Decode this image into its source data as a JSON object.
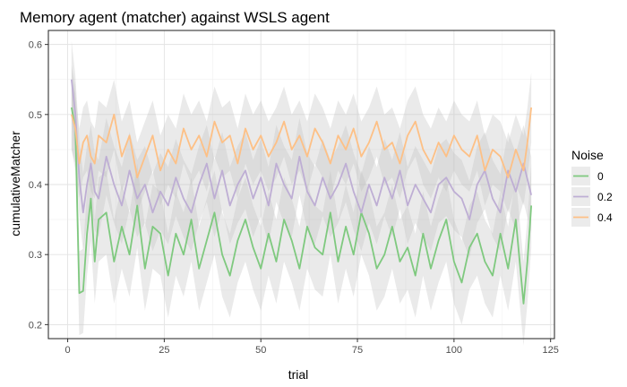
{
  "chart_data": {
    "type": "line",
    "title": "Memory agent (matcher) against WSLS agent",
    "xlabel": "trial",
    "ylabel": "cumulativeMatcher",
    "xlim": [
      -5,
      126
    ],
    "ylim": [
      0.18,
      0.62
    ],
    "x_ticks": [
      0,
      25,
      50,
      75,
      100,
      125
    ],
    "y_ticks": [
      0.2,
      0.3,
      0.4,
      0.5,
      0.6
    ],
    "x_tick_labels": [
      "0",
      "25",
      "50",
      "75",
      "100",
      "125"
    ],
    "y_tick_labels": [
      "0.2",
      "0.3",
      "0.4",
      "0.5",
      "0.6"
    ],
    "grid": true,
    "legend": {
      "title": "Noise",
      "position": "right"
    },
    "series": [
      {
        "name": "0",
        "color": "#7fc97f",
        "band_width": 0.06,
        "points": [
          [
            1,
            0.51
          ],
          [
            2,
            0.48
          ],
          [
            3,
            0.245
          ],
          [
            4,
            0.248
          ],
          [
            5,
            0.33
          ],
          [
            6,
            0.38
          ],
          [
            7,
            0.29
          ],
          [
            8,
            0.35
          ],
          [
            10,
            0.36
          ],
          [
            12,
            0.29
          ],
          [
            14,
            0.34
          ],
          [
            16,
            0.3
          ],
          [
            18,
            0.37
          ],
          [
            20,
            0.28
          ],
          [
            22,
            0.34
          ],
          [
            24,
            0.33
          ],
          [
            26,
            0.27
          ],
          [
            28,
            0.33
          ],
          [
            30,
            0.3
          ],
          [
            32,
            0.35
          ],
          [
            34,
            0.28
          ],
          [
            36,
            0.32
          ],
          [
            38,
            0.36
          ],
          [
            40,
            0.3
          ],
          [
            42,
            0.27
          ],
          [
            44,
            0.32
          ],
          [
            46,
            0.35
          ],
          [
            48,
            0.31
          ],
          [
            50,
            0.28
          ],
          [
            52,
            0.33
          ],
          [
            54,
            0.29
          ],
          [
            56,
            0.35
          ],
          [
            58,
            0.32
          ],
          [
            60,
            0.28
          ],
          [
            62,
            0.34
          ],
          [
            64,
            0.31
          ],
          [
            66,
            0.3
          ],
          [
            68,
            0.36
          ],
          [
            70,
            0.29
          ],
          [
            72,
            0.34
          ],
          [
            74,
            0.3
          ],
          [
            76,
            0.36
          ],
          [
            78,
            0.33
          ],
          [
            80,
            0.28
          ],
          [
            82,
            0.3
          ],
          [
            84,
            0.34
          ],
          [
            86,
            0.29
          ],
          [
            88,
            0.31
          ],
          [
            90,
            0.27
          ],
          [
            92,
            0.33
          ],
          [
            94,
            0.28
          ],
          [
            96,
            0.32
          ],
          [
            98,
            0.35
          ],
          [
            100,
            0.29
          ],
          [
            102,
            0.26
          ],
          [
            104,
            0.31
          ],
          [
            106,
            0.33
          ],
          [
            108,
            0.29
          ],
          [
            110,
            0.27
          ],
          [
            112,
            0.33
          ],
          [
            114,
            0.28
          ],
          [
            116,
            0.35
          ],
          [
            118,
            0.23
          ],
          [
            119,
            0.29
          ],
          [
            120,
            0.37
          ]
        ]
      },
      {
        "name": "0.2",
        "color": "#beaed4",
        "band_width": 0.055,
        "points": [
          [
            1,
            0.55
          ],
          [
            2,
            0.5
          ],
          [
            3,
            0.41
          ],
          [
            4,
            0.36
          ],
          [
            5,
            0.4
          ],
          [
            6,
            0.43
          ],
          [
            7,
            0.39
          ],
          [
            8,
            0.38
          ],
          [
            10,
            0.44
          ],
          [
            12,
            0.4
          ],
          [
            14,
            0.37
          ],
          [
            16,
            0.42
          ],
          [
            18,
            0.38
          ],
          [
            20,
            0.4
          ],
          [
            22,
            0.36
          ],
          [
            24,
            0.39
          ],
          [
            26,
            0.37
          ],
          [
            28,
            0.41
          ],
          [
            30,
            0.38
          ],
          [
            32,
            0.36
          ],
          [
            34,
            0.4
          ],
          [
            36,
            0.43
          ],
          [
            38,
            0.38
          ],
          [
            40,
            0.42
          ],
          [
            42,
            0.37
          ],
          [
            44,
            0.4
          ],
          [
            46,
            0.42
          ],
          [
            48,
            0.38
          ],
          [
            50,
            0.41
          ],
          [
            52,
            0.37
          ],
          [
            54,
            0.43
          ],
          [
            56,
            0.4
          ],
          [
            58,
            0.38
          ],
          [
            60,
            0.44
          ],
          [
            62,
            0.39
          ],
          [
            64,
            0.37
          ],
          [
            66,
            0.41
          ],
          [
            68,
            0.38
          ],
          [
            70,
            0.4
          ],
          [
            72,
            0.43
          ],
          [
            74,
            0.39
          ],
          [
            76,
            0.36
          ],
          [
            78,
            0.4
          ],
          [
            80,
            0.37
          ],
          [
            82,
            0.41
          ],
          [
            84,
            0.38
          ],
          [
            86,
            0.42
          ],
          [
            88,
            0.37
          ],
          [
            90,
            0.4
          ],
          [
            92,
            0.38
          ],
          [
            94,
            0.36
          ],
          [
            96,
            0.4
          ],
          [
            98,
            0.41
          ],
          [
            100,
            0.39
          ],
          [
            102,
            0.38
          ],
          [
            104,
            0.35
          ],
          [
            106,
            0.4
          ],
          [
            108,
            0.42
          ],
          [
            110,
            0.38
          ],
          [
            112,
            0.36
          ],
          [
            114,
            0.42
          ],
          [
            116,
            0.39
          ],
          [
            118,
            0.43
          ],
          [
            120,
            0.385
          ]
        ]
      },
      {
        "name": "0.4",
        "color": "#fdc086",
        "band_width": 0.05,
        "points": [
          [
            1,
            0.5
          ],
          [
            2,
            0.48
          ],
          [
            3,
            0.43
          ],
          [
            4,
            0.46
          ],
          [
            5,
            0.47
          ],
          [
            6,
            0.44
          ],
          [
            7,
            0.43
          ],
          [
            8,
            0.47
          ],
          [
            10,
            0.46
          ],
          [
            12,
            0.5
          ],
          [
            14,
            0.44
          ],
          [
            16,
            0.47
          ],
          [
            18,
            0.41
          ],
          [
            20,
            0.44
          ],
          [
            22,
            0.47
          ],
          [
            24,
            0.42
          ],
          [
            26,
            0.45
          ],
          [
            28,
            0.43
          ],
          [
            30,
            0.48
          ],
          [
            32,
            0.45
          ],
          [
            34,
            0.47
          ],
          [
            36,
            0.44
          ],
          [
            38,
            0.49
          ],
          [
            40,
            0.46
          ],
          [
            42,
            0.47
          ],
          [
            44,
            0.43
          ],
          [
            46,
            0.48
          ],
          [
            48,
            0.45
          ],
          [
            50,
            0.47
          ],
          [
            52,
            0.44
          ],
          [
            54,
            0.46
          ],
          [
            56,
            0.49
          ],
          [
            58,
            0.45
          ],
          [
            60,
            0.47
          ],
          [
            62,
            0.44
          ],
          [
            64,
            0.48
          ],
          [
            66,
            0.46
          ],
          [
            68,
            0.43
          ],
          [
            70,
            0.47
          ],
          [
            72,
            0.45
          ],
          [
            74,
            0.48
          ],
          [
            76,
            0.44
          ],
          [
            78,
            0.46
          ],
          [
            80,
            0.49
          ],
          [
            82,
            0.45
          ],
          [
            84,
            0.46
          ],
          [
            86,
            0.43
          ],
          [
            88,
            0.47
          ],
          [
            90,
            0.49
          ],
          [
            92,
            0.45
          ],
          [
            94,
            0.43
          ],
          [
            96,
            0.46
          ],
          [
            98,
            0.44
          ],
          [
            100,
            0.47
          ],
          [
            102,
            0.45
          ],
          [
            104,
            0.44
          ],
          [
            106,
            0.47
          ],
          [
            108,
            0.42
          ],
          [
            110,
            0.45
          ],
          [
            112,
            0.44
          ],
          [
            114,
            0.41
          ],
          [
            116,
            0.45
          ],
          [
            118,
            0.42
          ],
          [
            119,
            0.46
          ],
          [
            120,
            0.51
          ]
        ]
      }
    ]
  }
}
